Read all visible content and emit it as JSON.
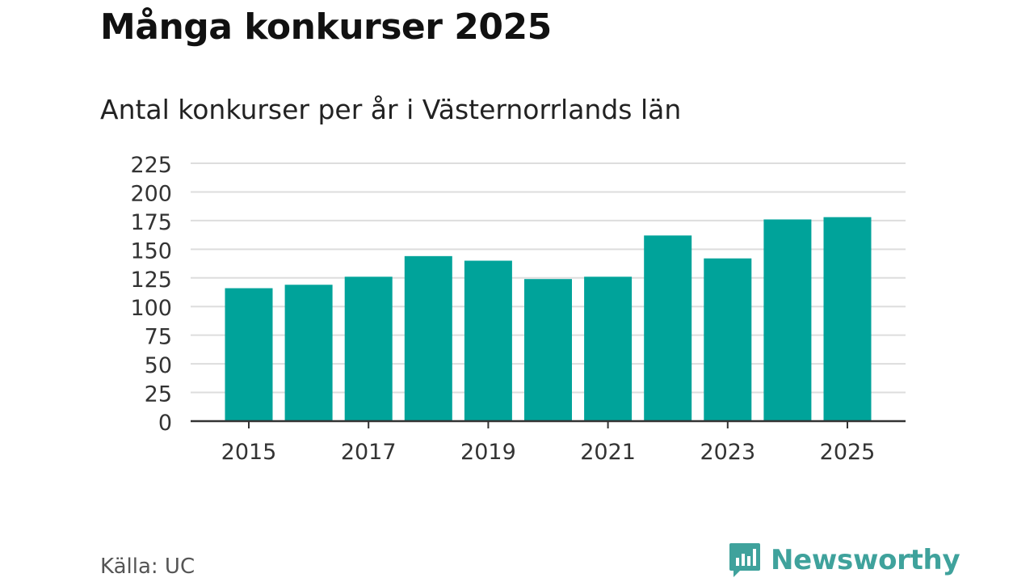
{
  "title": "Många konkurser 2025",
  "subtitle": "Antal konkurser per år i Västernorrlands län",
  "source": "Källa: UC",
  "brand": {
    "name": "Newsworthy",
    "icon": "newsworthy-logo-icon",
    "color": "#3fa29c"
  },
  "chart_data": {
    "type": "bar",
    "title": "Många konkurser 2025",
    "subtitle": "Antal konkurser per år i Västernorrlands län",
    "xlabel": "",
    "ylabel": "",
    "categories": [
      "2015",
      "2016",
      "2017",
      "2018",
      "2019",
      "2020",
      "2021",
      "2022",
      "2023",
      "2024",
      "2025"
    ],
    "values": [
      116,
      119,
      126,
      144,
      140,
      124,
      126,
      162,
      142,
      176,
      178
    ],
    "ylim": [
      0,
      225
    ],
    "yticks": [
      "0",
      "25",
      "50",
      "75",
      "100",
      "125",
      "150",
      "175",
      "200",
      "225"
    ],
    "xticks": [
      "2015",
      "2017",
      "2019",
      "2021",
      "2023",
      "2025"
    ],
    "bar_color": "#00a39a",
    "grid": true,
    "legend": "none"
  }
}
